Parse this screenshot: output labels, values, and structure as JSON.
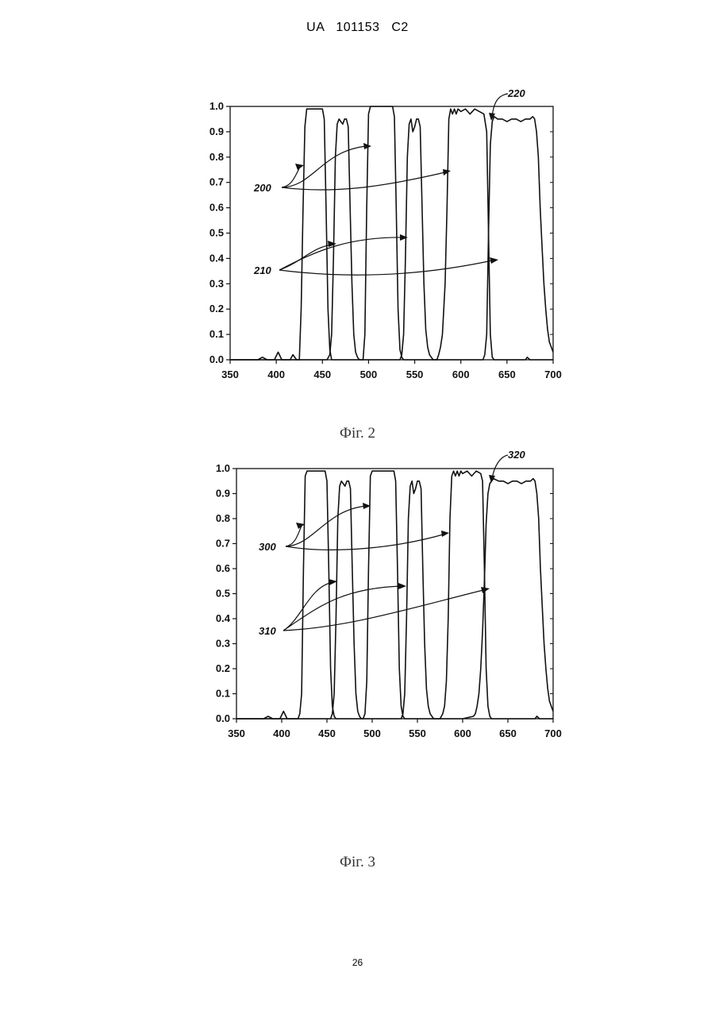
{
  "header": {
    "text": "UA   101153   C2"
  },
  "page_number": "26",
  "chart_data": [
    {
      "type": "line",
      "caption": "Фіг. 2",
      "xlabel": "",
      "ylabel": "",
      "xlim": [
        350,
        700
      ],
      "ylim": [
        0.0,
        1.0
      ],
      "xticks": [
        "350",
        "400",
        "450",
        "500",
        "550",
        "600",
        "650",
        "700"
      ],
      "yticks": [
        "0.0",
        "0.1",
        "0.2",
        "0.3",
        "0.4",
        "0.5",
        "0.6",
        "0.7",
        "0.8",
        "0.9",
        "1.0"
      ],
      "grid": false,
      "reference_labels": [
        "200",
        "210",
        "220"
      ],
      "series": [
        {
          "x": [
            350,
            380,
            385,
            390,
            398,
            402,
            406,
            415,
            418,
            422,
            425,
            427,
            429,
            431,
            433,
            435,
            450,
            452,
            454,
            456,
            458,
            460,
            462,
            464,
            466,
            468,
            472,
            475,
            480,
            484,
            486,
            488,
            490,
            492,
            494,
            496,
            498,
            500,
            502,
            504,
            506,
            520,
            526,
            528,
            530,
            532,
            534,
            536,
            538,
            540,
            542,
            544,
            546,
            549,
            552,
            555,
            558,
            560,
            562,
            564,
            566,
            568,
            570,
            572,
            574,
            576,
            578,
            580,
            583,
            585,
            587,
            589,
            591,
            593,
            595,
            597,
            600,
            605,
            610,
            615,
            620,
            625,
            628,
            630,
            632,
            634,
            636,
            645,
            652,
            660,
            670,
            672,
            675,
            680,
            684,
            686,
            688,
            690,
            694,
            698,
            700
          ],
          "y": [
            0.0,
            0.0,
            0.01,
            0.0,
            0.0,
            0.03,
            0.0,
            0.0,
            0.02,
            0.0,
            0.0,
            0.2,
            0.6,
            0.92,
            0.99,
            0.99,
            0.99,
            0.95,
            0.6,
            0.2,
            0.04,
            0.0,
            0.0,
            0.0,
            0.0,
            0.0,
            0.0,
            0.0,
            0.0,
            0.0,
            0.0,
            0.0,
            0.0,
            0.0,
            0.0,
            0.1,
            0.6,
            0.97,
            1.0,
            1.0,
            1.0,
            1.0,
            1.0,
            0.96,
            0.6,
            0.2,
            0.04,
            0.01,
            0.0,
            0.0,
            0.0,
            0.0,
            0.0,
            0.0,
            0.0,
            0.0,
            0.0,
            0.0,
            0.0,
            0.0,
            0.0,
            0.0,
            0.0,
            0.0,
            0.0,
            0.02,
            0.05,
            0.1,
            0.3,
            0.6,
            0.95,
            0.99,
            0.97,
            0.99,
            0.97,
            0.99,
            0.98,
            0.99,
            0.97,
            0.99,
            0.98,
            0.97,
            0.9,
            0.5,
            0.1,
            0.01,
            0.0,
            0.0,
            0.0,
            0.0,
            0.0,
            0.01,
            0.0,
            0.0,
            0.0,
            0.0,
            0.0,
            0.0,
            0.0,
            0.0,
            0.0
          ]
        },
        {
          "x": [
            350,
            455,
            458,
            460,
            462,
            464,
            466,
            468,
            470,
            472,
            474,
            476,
            478,
            480,
            482,
            484,
            486,
            488,
            490,
            492,
            494,
            496,
            498,
            500,
            520,
            534,
            536,
            538,
            540,
            542,
            544,
            546,
            548,
            550,
            552,
            554,
            556,
            558,
            560,
            562,
            564,
            566,
            568,
            570,
            572,
            574,
            576,
            578,
            580,
            582,
            584,
            586,
            588,
            590,
            610,
            624,
            626,
            628,
            630,
            632,
            634,
            636,
            640,
            645,
            650,
            655,
            660,
            665,
            670,
            675,
            678,
            680,
            682,
            684,
            686,
            688,
            690,
            692,
            694,
            696,
            698,
            700
          ],
          "y": [
            0.0,
            0.0,
            0.02,
            0.1,
            0.4,
            0.8,
            0.93,
            0.95,
            0.94,
            0.93,
            0.95,
            0.95,
            0.92,
            0.6,
            0.3,
            0.1,
            0.03,
            0.01,
            0.0,
            0.0,
            0.0,
            0.0,
            0.0,
            0.0,
            0.0,
            0.0,
            0.02,
            0.1,
            0.4,
            0.8,
            0.93,
            0.95,
            0.9,
            0.92,
            0.95,
            0.95,
            0.92,
            0.6,
            0.3,
            0.12,
            0.05,
            0.02,
            0.01,
            0.0,
            0.0,
            0.0,
            0.0,
            0.0,
            0.0,
            0.0,
            0.0,
            0.0,
            0.0,
            0.0,
            0.0,
            0.0,
            0.02,
            0.1,
            0.5,
            0.85,
            0.94,
            0.96,
            0.95,
            0.95,
            0.94,
            0.95,
            0.95,
            0.94,
            0.95,
            0.95,
            0.96,
            0.95,
            0.9,
            0.8,
            0.6,
            0.45,
            0.3,
            0.2,
            0.12,
            0.07,
            0.05,
            0.03
          ]
        }
      ]
    },
    {
      "type": "line",
      "caption": "Фіг. 3",
      "xlabel": "",
      "ylabel": "",
      "xlim": [
        350,
        700
      ],
      "ylim": [
        0.0,
        1.0
      ],
      "xticks": [
        "350",
        "400",
        "450",
        "500",
        "550",
        "600",
        "650",
        "700"
      ],
      "yticks": [
        "0.0",
        "0.1",
        "0.2",
        "0.3",
        "0.4",
        "0.5",
        "0.6",
        "0.7",
        "0.8",
        "0.9",
        "1.0"
      ],
      "grid": false,
      "reference_labels": [
        "300",
        "310",
        "320"
      ],
      "series": [
        {
          "x": [
            350,
            380,
            385,
            390,
            398,
            402,
            406,
            418,
            420,
            422,
            424,
            426,
            428,
            430,
            445,
            448,
            450,
            452,
            454,
            456,
            458,
            460,
            462,
            464,
            466,
            468,
            470,
            475,
            480,
            484,
            486,
            488,
            490,
            492,
            494,
            496,
            498,
            500,
            520,
            524,
            526,
            528,
            530,
            532,
            534,
            536,
            540,
            545,
            550,
            555,
            560,
            565,
            570,
            575,
            578,
            580,
            582,
            584,
            586,
            588,
            590,
            592,
            594,
            596,
            598,
            600,
            605,
            610,
            615,
            620,
            622,
            624,
            626,
            628,
            630,
            632,
            640,
            660,
            680,
            682,
            685,
            690,
            700
          ],
          "y": [
            0.0,
            0.0,
            0.01,
            0.0,
            0.0,
            0.03,
            0.0,
            0.0,
            0.02,
            0.1,
            0.6,
            0.97,
            0.99,
            0.99,
            0.99,
            0.99,
            0.95,
            0.6,
            0.2,
            0.05,
            0.01,
            0.0,
            0.0,
            0.0,
            0.0,
            0.0,
            0.0,
            0.0,
            0.0,
            0.0,
            0.0,
            0.0,
            0.0,
            0.02,
            0.15,
            0.6,
            0.97,
            0.99,
            0.99,
            0.99,
            0.95,
            0.6,
            0.2,
            0.05,
            0.01,
            0.0,
            0.0,
            0.0,
            0.0,
            0.0,
            0.0,
            0.0,
            0.0,
            0.0,
            0.02,
            0.05,
            0.15,
            0.4,
            0.8,
            0.97,
            0.99,
            0.97,
            0.99,
            0.97,
            0.99,
            0.98,
            0.99,
            0.97,
            0.99,
            0.98,
            0.95,
            0.6,
            0.2,
            0.05,
            0.01,
            0.0,
            0.0,
            0.0,
            0.0,
            0.01,
            0.0,
            0.0,
            0.0
          ]
        },
        {
          "x": [
            350,
            454,
            456,
            458,
            460,
            462,
            464,
            466,
            468,
            470,
            472,
            474,
            476,
            478,
            480,
            482,
            484,
            486,
            488,
            490,
            500,
            520,
            532,
            534,
            536,
            538,
            540,
            542,
            544,
            546,
            548,
            550,
            552,
            554,
            556,
            558,
            560,
            562,
            564,
            566,
            568,
            570,
            580,
            600,
            612,
            614,
            616,
            618,
            620,
            622,
            624,
            626,
            628,
            630,
            634,
            640,
            645,
            650,
            655,
            660,
            665,
            670,
            675,
            678,
            680,
            682,
            684,
            686,
            688,
            690,
            692,
            694,
            696,
            698,
            700
          ],
          "y": [
            0.0,
            0.0,
            0.02,
            0.1,
            0.4,
            0.8,
            0.93,
            0.95,
            0.94,
            0.93,
            0.95,
            0.95,
            0.92,
            0.6,
            0.3,
            0.1,
            0.03,
            0.01,
            0.0,
            0.0,
            0.0,
            0.0,
            0.0,
            0.02,
            0.1,
            0.4,
            0.8,
            0.93,
            0.95,
            0.9,
            0.92,
            0.95,
            0.95,
            0.92,
            0.6,
            0.3,
            0.12,
            0.05,
            0.02,
            0.01,
            0.0,
            0.0,
            0.0,
            0.0,
            0.01,
            0.02,
            0.05,
            0.1,
            0.2,
            0.35,
            0.55,
            0.78,
            0.9,
            0.94,
            0.96,
            0.95,
            0.95,
            0.94,
            0.95,
            0.95,
            0.94,
            0.95,
            0.95,
            0.96,
            0.95,
            0.9,
            0.8,
            0.6,
            0.45,
            0.3,
            0.2,
            0.12,
            0.07,
            0.05,
            0.03
          ]
        }
      ]
    }
  ]
}
